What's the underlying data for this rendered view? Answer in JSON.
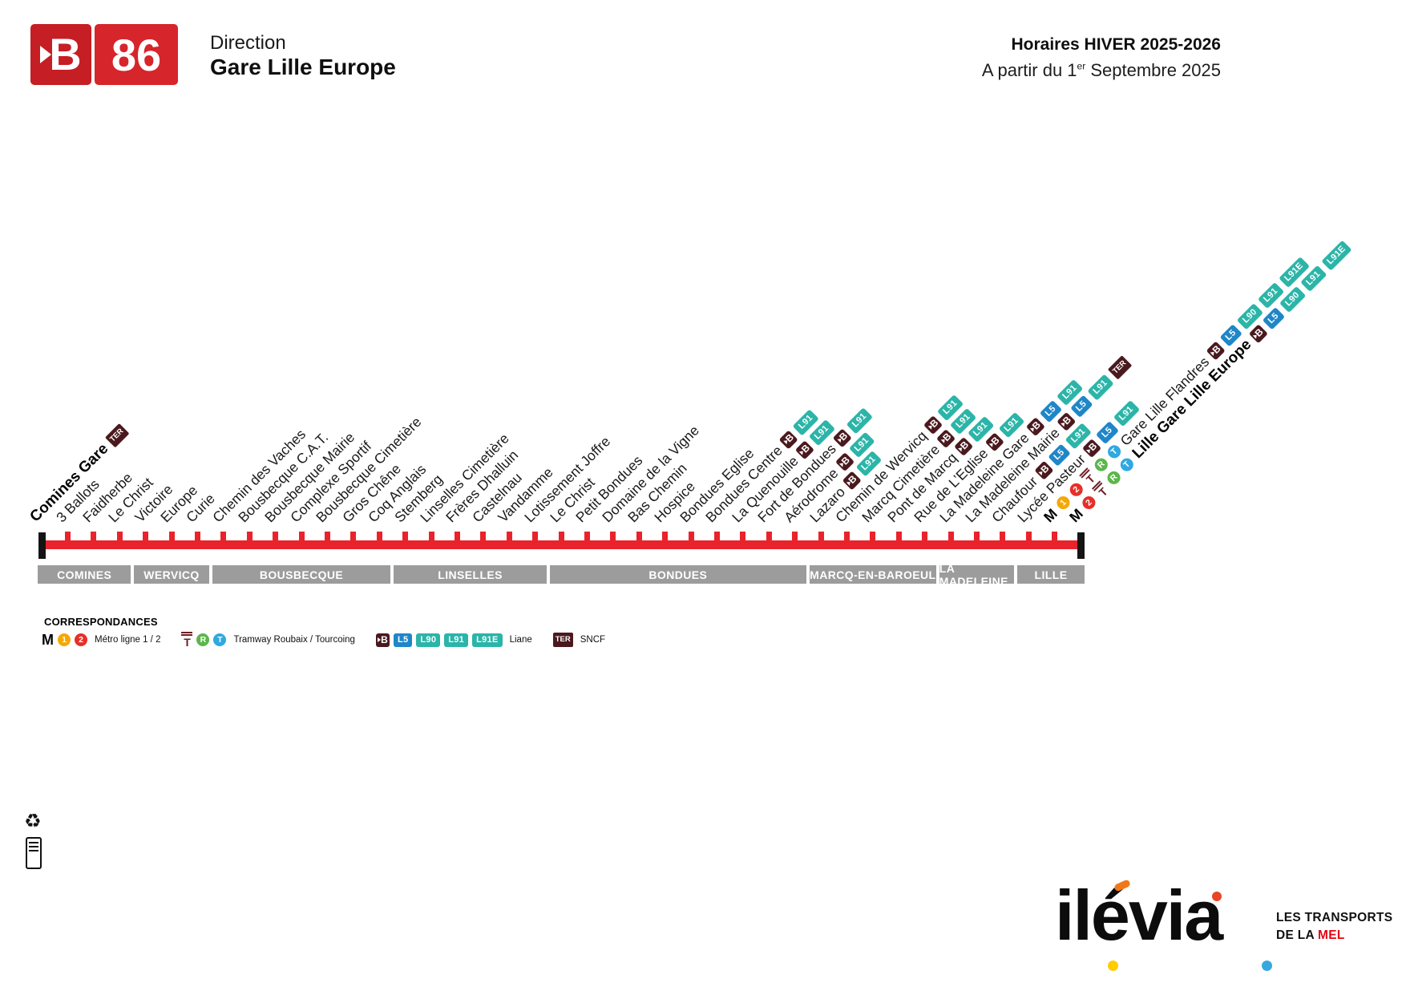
{
  "header": {
    "line_letter": "B",
    "line_number": "86",
    "direction_label": "Direction",
    "direction_value": "Gare Lille Europe",
    "schedule_title": "Horaires HIVER 2025-2026",
    "schedule_subtitle_prefix": "A partir du 1",
    "schedule_subtitle_sup": "er",
    "schedule_subtitle_suffix": " Septembre 2025"
  },
  "route": {
    "stops": [
      {
        "name": "Comines Gare",
        "bold": true,
        "post": [
          "TER"
        ]
      },
      {
        "name": "3 Ballots"
      },
      {
        "name": "Faidherbe"
      },
      {
        "name": "Le Christ"
      },
      {
        "name": "Victoire"
      },
      {
        "name": "Europe"
      },
      {
        "name": "Curie"
      },
      {
        "name": "Chemin des Vaches"
      },
      {
        "name": "Bousbecque C.A.T."
      },
      {
        "name": "Bousbecque Mairie"
      },
      {
        "name": "Complexe Sportif"
      },
      {
        "name": "Bousbecque Cimetière"
      },
      {
        "name": "Gros Chêne"
      },
      {
        "name": "Coq Anglais"
      },
      {
        "name": "Stemberg"
      },
      {
        "name": "Linselles Cimetière"
      },
      {
        "name": "Frères Dhalluin"
      },
      {
        "name": "Castelnau"
      },
      {
        "name": "Vandamme"
      },
      {
        "name": "Lotissement Joffre"
      },
      {
        "name": "Le Christ"
      },
      {
        "name": "Petit Bondues"
      },
      {
        "name": "Domaine de la Vigne"
      },
      {
        "name": "Bas Chemin"
      },
      {
        "name": "Hospice"
      },
      {
        "name": "Bondues Eglise"
      },
      {
        "name": "Bondues Centre",
        "post": [
          "B",
          "L91"
        ]
      },
      {
        "name": "La Quenouille",
        "post": [
          "B",
          "L91"
        ]
      },
      {
        "name": "Fort de Bondues",
        "post": [
          "B",
          "L91"
        ]
      },
      {
        "name": "Aérodrome",
        "post": [
          "B",
          "L91"
        ]
      },
      {
        "name": "Lazaro",
        "post": [
          "B",
          "L91"
        ]
      },
      {
        "name": "Chemin de Wervicq",
        "post": [
          "B",
          "L91"
        ]
      },
      {
        "name": "Marcq Cimetière",
        "post": [
          "B",
          "L91"
        ]
      },
      {
        "name": "Pont de Marcq",
        "post": [
          "B",
          "L91"
        ]
      },
      {
        "name": "Rue de L’Eglise",
        "post": [
          "B",
          "L91"
        ]
      },
      {
        "name": "La Madeleine Gare",
        "post": [
          "B",
          "L5",
          "L91"
        ]
      },
      {
        "name": "La Madeleine Mairie",
        "post": [
          "B",
          "L5",
          "L91",
          "TER"
        ]
      },
      {
        "name": "Chaufour",
        "post": [
          "B",
          "L5",
          "L91"
        ]
      },
      {
        "name": "Lycée Pasteur",
        "post": [
          "B",
          "L5",
          "L91"
        ]
      },
      {
        "name": "Gare Lille Flandres",
        "pre": [
          "M",
          "1",
          "2",
          "tram",
          "R",
          "T"
        ],
        "post": [
          "B",
          "L5",
          "L90",
          "L91",
          "L91E"
        ]
      },
      {
        "name": "Lille Gare Lille Europe",
        "bold": true,
        "pre": [
          "M",
          "2",
          "tram",
          "R",
          "T"
        ],
        "post": [
          "B",
          "L5",
          "L90",
          "L91",
          "L91E"
        ]
      }
    ],
    "communes": [
      {
        "name": "COMINES",
        "from": 0,
        "to": 3
      },
      {
        "name": "WERVICQ",
        "from": 4,
        "to": 6
      },
      {
        "name": "BOUSBECQUE",
        "from": 7,
        "to": 13
      },
      {
        "name": "LINSELLES",
        "from": 14,
        "to": 19
      },
      {
        "name": "BONDUES",
        "from": 20,
        "to": 29
      },
      {
        "name": "MARCQ-EN-BAROEUL",
        "from": 30,
        "to": 34
      },
      {
        "name": "LA MADELEINE",
        "from": 35,
        "to": 37
      },
      {
        "name": "LILLE",
        "from": 38,
        "to": 40
      }
    ]
  },
  "legend": {
    "title": "CORRESPONDANCES",
    "items": [
      {
        "icons": [
          "M",
          "1",
          "2"
        ],
        "label": "Métro ligne 1 / 2"
      },
      {
        "icons": [
          "tram",
          "R",
          "T"
        ],
        "label": "Tramway Roubaix / Tourcoing"
      },
      {
        "icons": [
          "B",
          "L5",
          "L90",
          "L91",
          "L91E"
        ],
        "label": "Liane"
      },
      {
        "icons": [
          "TER"
        ],
        "label": "SNCF"
      }
    ]
  },
  "footer": {
    "brand": "ilévia",
    "tagline_line1": "LES TRANSPORTS",
    "tagline_line2_prefix": "DE LA ",
    "tagline_highlight": "MEL"
  },
  "colors": {
    "line_red": "#E9232B",
    "liane_dark": "#4A191E",
    "liane_teal": "#2BB5A8",
    "liane_blue": "#1F86C8",
    "metro_yellow": "#F6A800",
    "metro_red": "#E63027",
    "tram_green": "#5CB64B",
    "tram_blue": "#2FA9E0",
    "commune_gray": "#9C9C9C",
    "mel_red": "#E30613"
  }
}
